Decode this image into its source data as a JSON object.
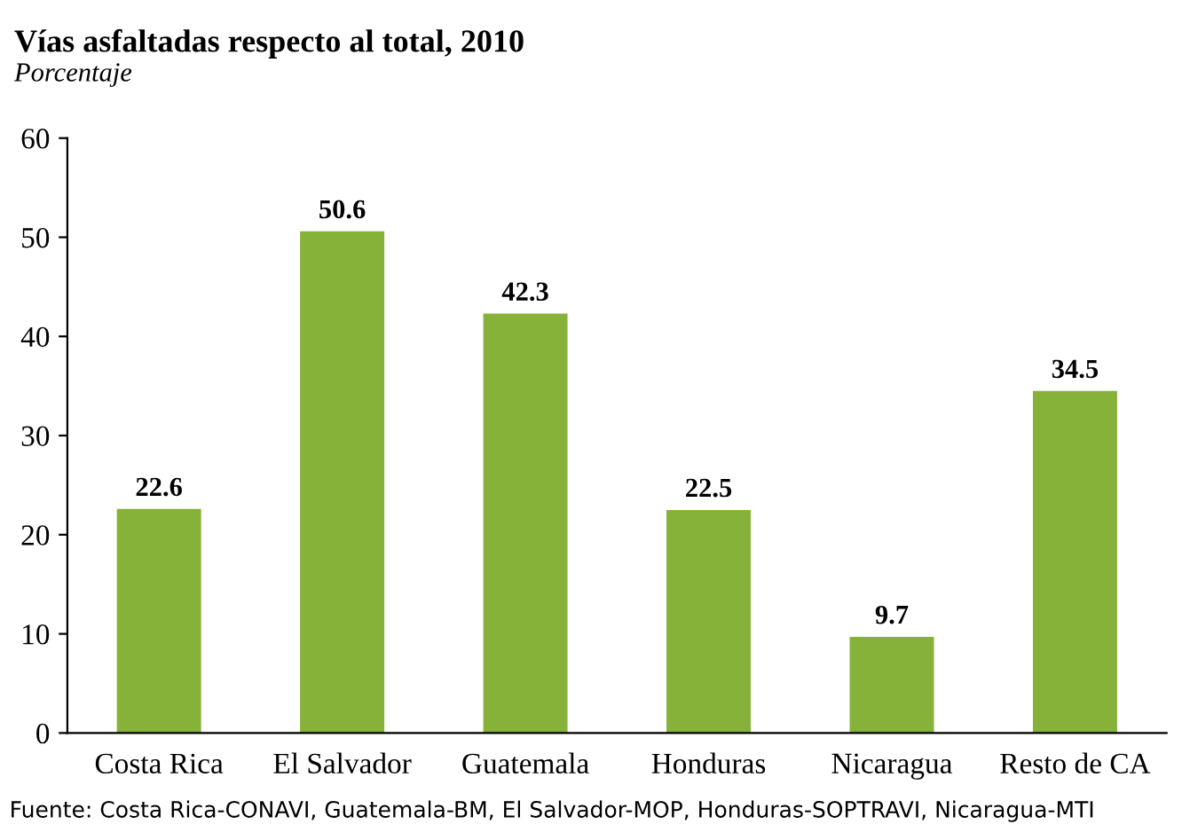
{
  "chart_data": {
    "type": "bar",
    "title": "Vías asfaltadas respecto al total, 2010",
    "subtitle": "Porcentaje",
    "categories": [
      "Costa Rica",
      "El Salvador",
      "Guatemala",
      "Honduras",
      "Nicaragua",
      "Resto de CA"
    ],
    "values": [
      22.6,
      50.6,
      42.3,
      22.5,
      9.7,
      34.5
    ],
    "color": "#86b23a",
    "ylim": [
      0,
      60
    ],
    "yticks": [
      0,
      10,
      20,
      30,
      40,
      50,
      60
    ],
    "grid": false,
    "data_labels": true,
    "annotations": [
      "Fuente: Costa Rica-CONAVI, Guatemala-BM, El Salvador-MOP, Honduras-SOPTRAVI, Nicaragua-MTI"
    ]
  }
}
